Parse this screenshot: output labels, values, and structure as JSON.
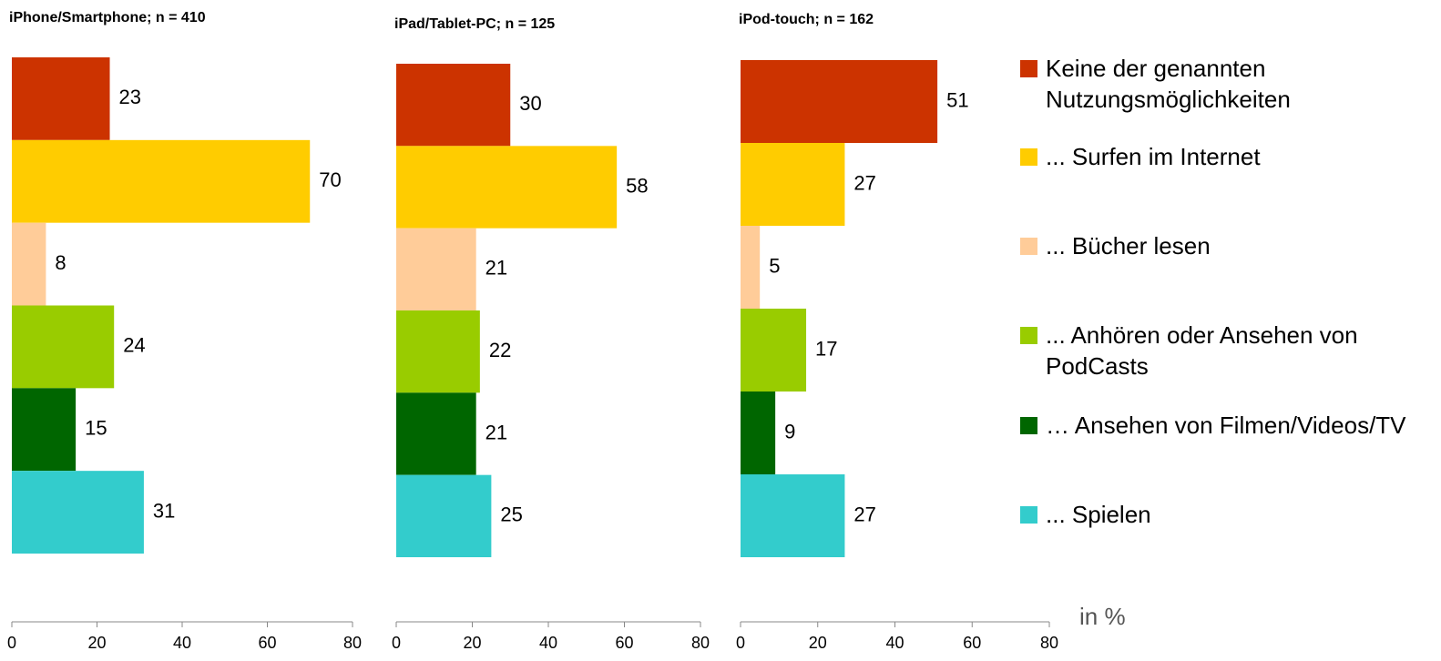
{
  "chart_data": [
    {
      "type": "bar",
      "orientation": "horizontal",
      "title": "iPhone/Smartphone; n = 410",
      "values": [
        23,
        70,
        8,
        24,
        15,
        31
      ],
      "xlim": [
        0,
        80
      ],
      "xticks": [
        0,
        20,
        40,
        60,
        80
      ]
    },
    {
      "type": "bar",
      "orientation": "horizontal",
      "title": "iPad/Tablet-PC; n = 125",
      "values": [
        30,
        58,
        21,
        22,
        21,
        25
      ],
      "xlim": [
        0,
        80
      ],
      "xticks": [
        0,
        20,
        40,
        60,
        80
      ]
    },
    {
      "type": "bar",
      "orientation": "horizontal",
      "title": "iPod-touch; n = 162",
      "values": [
        51,
        27,
        5,
        17,
        9,
        27
      ],
      "xlim": [
        0,
        80
      ],
      "xticks": [
        0,
        20,
        40,
        60,
        80
      ]
    }
  ],
  "legend": {
    "items": [
      {
        "label": "Keine der genannten Nutzungsmöglichkeiten",
        "color": "#cc3300"
      },
      {
        "label": "... Surfen im Internet",
        "color": "#ffcc00"
      },
      {
        "label": "... Bücher lesen",
        "color": "#ffcc99"
      },
      {
        "label": "... Anhören oder Ansehen von PodCasts",
        "color": "#99cc00"
      },
      {
        "label": "… Ansehen von Filmen/Videos/TV",
        "color": "#006600"
      },
      {
        "label": "... Spielen",
        "color": "#33cccc"
      }
    ]
  },
  "unit_label": "in %"
}
